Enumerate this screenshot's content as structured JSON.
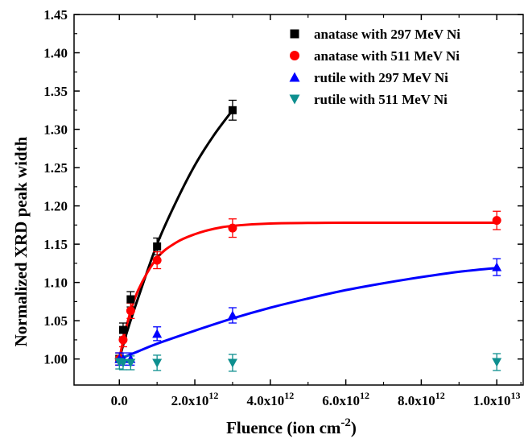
{
  "chart_data": {
    "type": "scatter",
    "xlabel": "Fluence (ion cm",
    "xlabel_sup": "-2",
    "xlabel_close": ")",
    "ylabel": "Normalized XRD peak width",
    "xlim": [
      -1200000000000.0,
      10700000000000.0
    ],
    "ylim": [
      0.966,
      1.45
    ],
    "x_ticks": [
      {
        "v": 0,
        "mant": "0.0",
        "exp": ""
      },
      {
        "v": 2000000000000.0,
        "mant": "2.0x10",
        "exp": "12"
      },
      {
        "v": 4000000000000.0,
        "mant": "4.0x10",
        "exp": "12"
      },
      {
        "v": 6000000000000.0,
        "mant": "6.0x10",
        "exp": "12"
      },
      {
        "v": 8000000000000.0,
        "mant": "8.0x10",
        "exp": "12"
      },
      {
        "v": 10000000000000.0,
        "mant": "1.0x10",
        "exp": "13"
      }
    ],
    "y_ticks": [
      "1.00",
      "1.05",
      "1.10",
      "1.15",
      "1.20",
      "1.25",
      "1.30",
      "1.35",
      "1.40",
      "1.45"
    ],
    "legend_position": "top-right",
    "series": [
      {
        "name": "anatase with 297 MeV Ni",
        "color": "#000000",
        "marker": "square",
        "points": [
          {
            "x": 0,
            "y": 1.0,
            "err": 0.008
          },
          {
            "x": 100000000000.0,
            "y": 1.038,
            "err": 0.009
          },
          {
            "x": 300000000000.0,
            "y": 1.078,
            "err": 0.01
          },
          {
            "x": 1000000000000.0,
            "y": 1.147,
            "err": 0.011
          },
          {
            "x": 3000000000000.0,
            "y": 1.325,
            "err": 0.013
          }
        ],
        "fit": [
          [
            0,
            1.0
          ],
          [
            200000000000.0,
            1.035
          ],
          [
            500000000000.0,
            1.08
          ],
          [
            1000000000000.0,
            1.15
          ],
          [
            1500000000000.0,
            1.205
          ],
          [
            2000000000000.0,
            1.253
          ],
          [
            2500000000000.0,
            1.292
          ],
          [
            3000000000000.0,
            1.325
          ]
        ]
      },
      {
        "name": "anatase with 511 MeV Ni",
        "color": "#ff0000",
        "marker": "circle",
        "points": [
          {
            "x": 0,
            "y": 1.0,
            "err": 0.008
          },
          {
            "x": 100000000000.0,
            "y": 1.025,
            "err": 0.009
          },
          {
            "x": 300000000000.0,
            "y": 1.063,
            "err": 0.01
          },
          {
            "x": 1000000000000.0,
            "y": 1.129,
            "err": 0.011
          },
          {
            "x": 3000000000000.0,
            "y": 1.171,
            "err": 0.012
          },
          {
            "x": 10000000000000.0,
            "y": 1.181,
            "err": 0.012
          }
        ],
        "fit": [
          [
            0,
            1.0
          ],
          [
            200000000000.0,
            1.045
          ],
          [
            500000000000.0,
            1.09
          ],
          [
            1000000000000.0,
            1.132
          ],
          [
            1500000000000.0,
            1.152
          ],
          [
            2000000000000.0,
            1.163
          ],
          [
            2500000000000.0,
            1.17
          ],
          [
            3000000000000.0,
            1.174
          ],
          [
            4000000000000.0,
            1.177
          ],
          [
            6000000000000.0,
            1.178
          ],
          [
            10000000000000.0,
            1.178
          ]
        ]
      },
      {
        "name": "rutile with 297 MeV Ni",
        "color": "#0000ff",
        "marker": "triangle-up",
        "points": [
          {
            "x": 0,
            "y": 1.0,
            "err": 0.008
          },
          {
            "x": 100000000000.0,
            "y": 1.0,
            "err": 0.008
          },
          {
            "x": 300000000000.0,
            "y": 1.0,
            "err": 0.008
          },
          {
            "x": 1000000000000.0,
            "y": 1.033,
            "err": 0.009
          },
          {
            "x": 3000000000000.0,
            "y": 1.057,
            "err": 0.01
          },
          {
            "x": 10000000000000.0,
            "y": 1.12,
            "err": 0.011
          }
        ],
        "fit": [
          [
            0,
            1.0
          ],
          [
            500000000000.0,
            1.01
          ],
          [
            1000000000000.0,
            1.02
          ],
          [
            2000000000000.0,
            1.037
          ],
          [
            3000000000000.0,
            1.053
          ],
          [
            4000000000000.0,
            1.067
          ],
          [
            5000000000000.0,
            1.079
          ],
          [
            6000000000000.0,
            1.09
          ],
          [
            7000000000000.0,
            1.099
          ],
          [
            8000000000000.0,
            1.107
          ],
          [
            9000000000000.0,
            1.114
          ],
          [
            10000000000000.0,
            1.119
          ]
        ]
      },
      {
        "name": "rutile with 511 MeV Ni",
        "color": "#0e8f8f",
        "marker": "triangle-down",
        "points": [
          {
            "x": 0,
            "y": 0.996,
            "err": 0.009
          },
          {
            "x": 100000000000.0,
            "y": 0.995,
            "err": 0.009
          },
          {
            "x": 300000000000.0,
            "y": 0.995,
            "err": 0.009
          },
          {
            "x": 1000000000000.0,
            "y": 0.995,
            "err": 0.01
          },
          {
            "x": 3000000000000.0,
            "y": 0.995,
            "err": 0.011
          },
          {
            "x": 10000000000000.0,
            "y": 0.996,
            "err": 0.011
          }
        ],
        "fit": []
      }
    ]
  }
}
